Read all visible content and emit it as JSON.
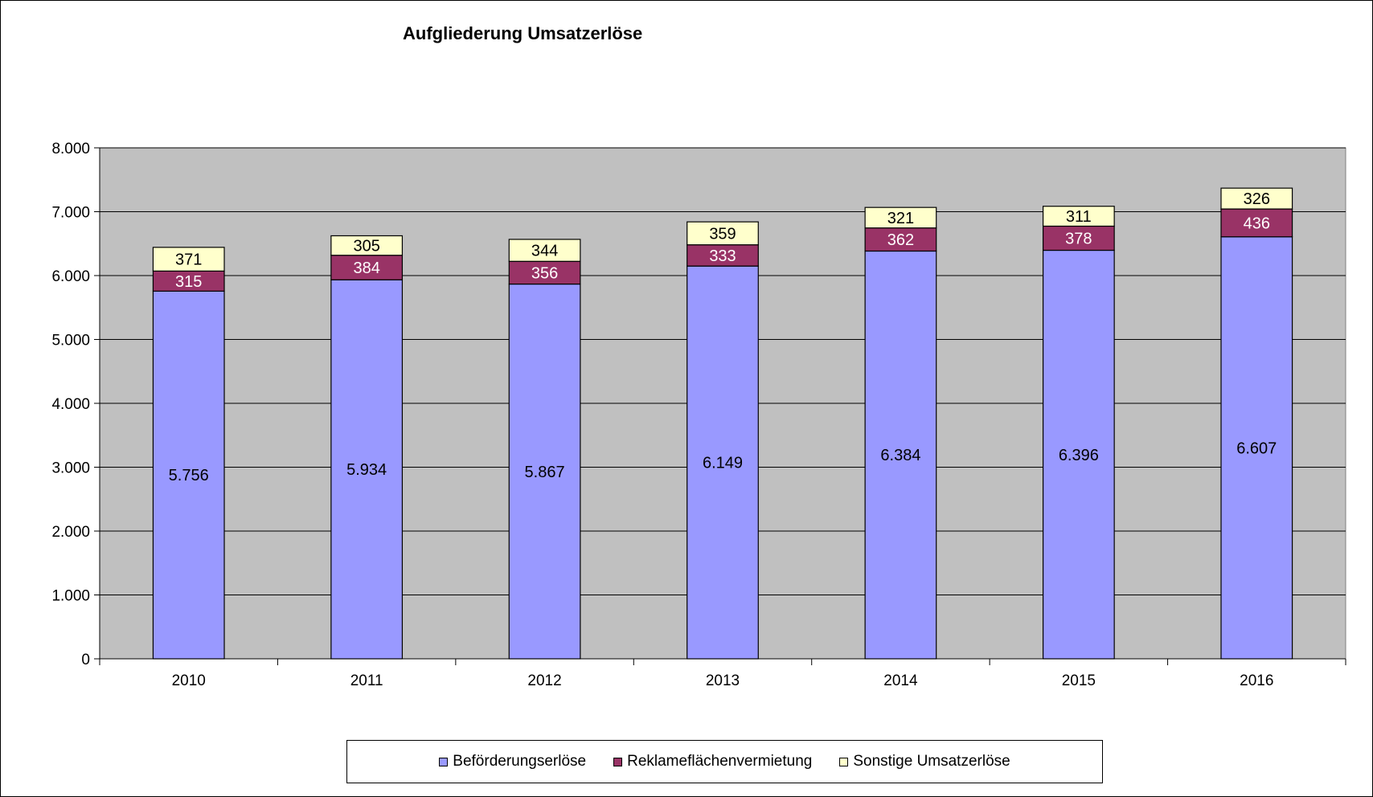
{
  "chart_data": {
    "type": "bar",
    "stacked": true,
    "title": "Aufgliederung Umsatzerlöse",
    "categories": [
      "2010",
      "2011",
      "2012",
      "2013",
      "2014",
      "2015",
      "2016"
    ],
    "series": [
      {
        "name": "Beförderungserlöse",
        "color": "#9999ff",
        "values": [
          5756,
          5934,
          5867,
          6149,
          6384,
          6396,
          6607
        ],
        "labels": [
          "5.756",
          "5.934",
          "5.867",
          "6.149",
          "6.384",
          "6.396",
          "6.607"
        ]
      },
      {
        "name": "Reklameflächenvermietung",
        "color": "#993366",
        "values": [
          315,
          384,
          356,
          333,
          362,
          378,
          436
        ],
        "labels": [
          "315",
          "384",
          "356",
          "333",
          "362",
          "378",
          "436"
        ]
      },
      {
        "name": "Sonstige Umsatzerlöse",
        "color": "#ffffcc",
        "values": [
          371,
          305,
          344,
          359,
          321,
          311,
          326
        ],
        "labels": [
          "371",
          "305",
          "344",
          "359",
          "321",
          "311",
          "326"
        ]
      }
    ],
    "ylim": [
      0,
      8000
    ],
    "yticks": [
      0,
      1000,
      2000,
      3000,
      4000,
      5000,
      6000,
      7000,
      8000
    ],
    "ytick_labels": [
      "0",
      "1.000",
      "2.000",
      "3.000",
      "4.000",
      "5.000",
      "6.000",
      "7.000",
      "8.000"
    ],
    "grid": true,
    "plot_background": "#c0c0c0",
    "legend_position": "bottom"
  }
}
